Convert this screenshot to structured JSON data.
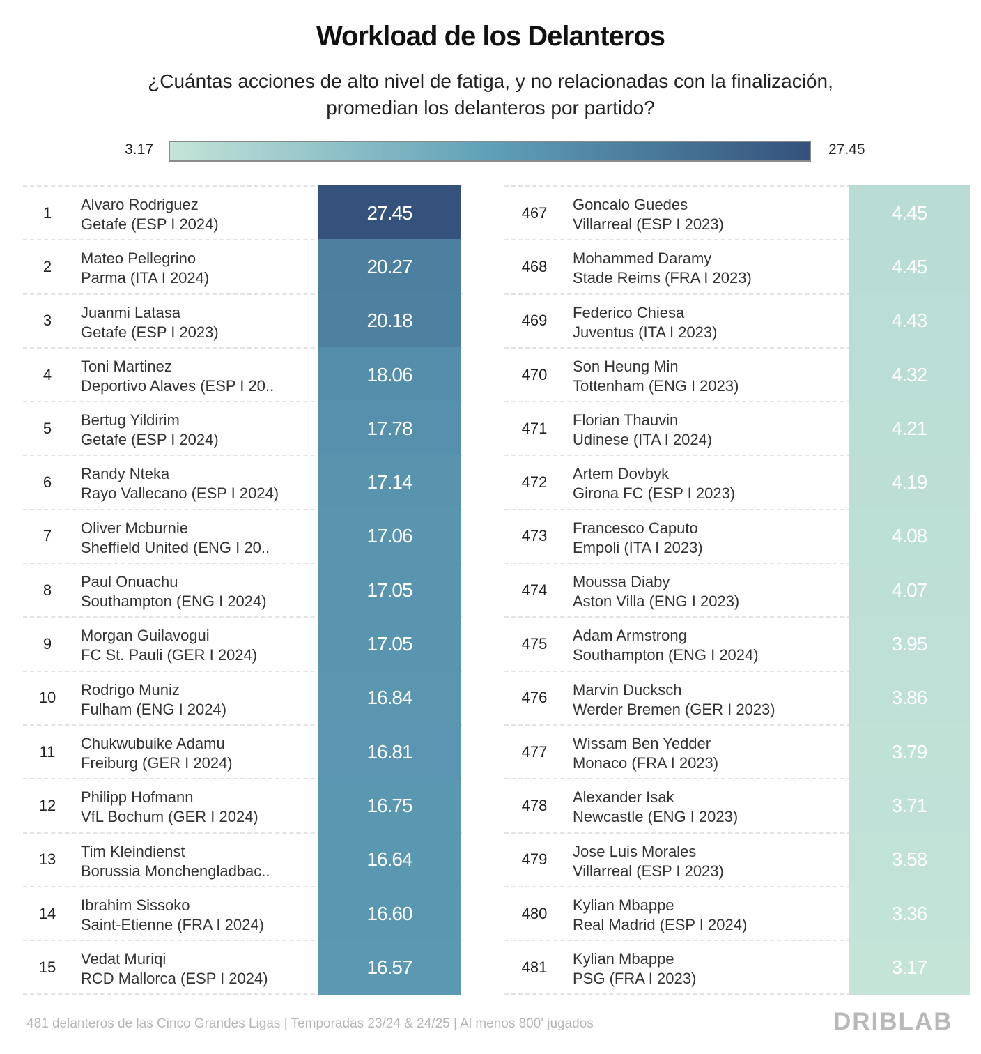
{
  "title": "Workload de los Delanteros",
  "subtitle_line1": "¿Cuántas acciones de alto nivel de fatiga, y no relacionadas con la finalización,",
  "subtitle_line2": "promedian los delanteros por partido?",
  "legend": {
    "min_label": "3.17",
    "max_label": "27.45",
    "min_color": "#c4e4d8",
    "mid_color": "#5fa0b8",
    "max_color": "#34527c"
  },
  "footer": "481 delanteros de las Cinco Grandes Ligas | Temporadas 23/24 & 24/25 | Al menos 800' jugados",
  "brand": "DRIBLAB",
  "chart_data": {
    "type": "table",
    "title": "Workload de los Delanteros",
    "color_scale": {
      "min": 3.17,
      "max": 27.45
    },
    "top": [
      {
        "rank": "1",
        "player": "Alvaro Rodriguez",
        "team": "Getafe (ESP I 2024)",
        "value": 27.45
      },
      {
        "rank": "2",
        "player": "Mateo Pellegrino",
        "team": "Parma (ITA I 2024)",
        "value": 20.27
      },
      {
        "rank": "3",
        "player": "Juanmi Latasa",
        "team": "Getafe (ESP I 2023)",
        "value": 20.18
      },
      {
        "rank": "4",
        "player": "Toni Martinez",
        "team": "Deportivo Alaves (ESP I 20..",
        "value": 18.06
      },
      {
        "rank": "5",
        "player": "Bertug Yildirim",
        "team": "Getafe (ESP I 2024)",
        "value": 17.78
      },
      {
        "rank": "6",
        "player": "Randy Nteka",
        "team": "Rayo Vallecano (ESP I 2024)",
        "value": 17.14
      },
      {
        "rank": "7",
        "player": "Oliver Mcburnie",
        "team": "Sheffield United (ENG I 20..",
        "value": 17.06
      },
      {
        "rank": "8",
        "player": "Paul Onuachu",
        "team": "Southampton (ENG I 2024)",
        "value": 17.05
      },
      {
        "rank": "9",
        "player": "Morgan Guilavogui",
        "team": "FC St. Pauli (GER I 2024)",
        "value": 17.05
      },
      {
        "rank": "10",
        "player": "Rodrigo Muniz",
        "team": "Fulham (ENG I 2024)",
        "value": 16.84
      },
      {
        "rank": "11",
        "player": "Chukwubuike Adamu",
        "team": "Freiburg (GER I 2024)",
        "value": 16.81
      },
      {
        "rank": "12",
        "player": "Philipp Hofmann",
        "team": "VfL Bochum (GER I 2024)",
        "value": 16.75
      },
      {
        "rank": "13",
        "player": "Tim Kleindienst",
        "team": "Borussia Monchengladbac..",
        "value": 16.64
      },
      {
        "rank": "14",
        "player": "Ibrahim Sissoko",
        "team": "Saint-Etienne (FRA I 2024)",
        "value": "16.60"
      },
      {
        "rank": "15",
        "player": "Vedat Muriqi",
        "team": "RCD Mallorca (ESP I 2024)",
        "value": 16.57
      }
    ],
    "bottom": [
      {
        "rank": "467",
        "player": "Goncalo Guedes",
        "team": "Villarreal (ESP I 2023)",
        "value": 4.45
      },
      {
        "rank": "468",
        "player": "Mohammed Daramy",
        "team": "Stade Reims (FRA I 2023)",
        "value": 4.45
      },
      {
        "rank": "469",
        "player": "Federico Chiesa",
        "team": "Juventus (ITA I 2023)",
        "value": 4.43
      },
      {
        "rank": "470",
        "player": "Son Heung Min",
        "team": "Tottenham (ENG I 2023)",
        "value": 4.32
      },
      {
        "rank": "471",
        "player": "Florian Thauvin",
        "team": "Udinese (ITA I 2024)",
        "value": 4.21
      },
      {
        "rank": "472",
        "player": "Artem Dovbyk",
        "team": "Girona FC (ESP I 2023)",
        "value": 4.19
      },
      {
        "rank": "473",
        "player": "Francesco Caputo",
        "team": "Empoli (ITA I 2023)",
        "value": 4.08
      },
      {
        "rank": "474",
        "player": "Moussa Diaby",
        "team": "Aston Villa (ENG I 2023)",
        "value": 4.07
      },
      {
        "rank": "475",
        "player": "Adam Armstrong",
        "team": "Southampton (ENG I 2024)",
        "value": 3.95
      },
      {
        "rank": "476",
        "player": "Marvin Ducksch",
        "team": "Werder Bremen (GER I 2023)",
        "value": 3.86
      },
      {
        "rank": "477",
        "player": "Wissam Ben Yedder",
        "team": "Monaco (FRA I 2023)",
        "value": 3.79
      },
      {
        "rank": "478",
        "player": "Alexander Isak",
        "team": "Newcastle (ENG I 2023)",
        "value": 3.71
      },
      {
        "rank": "479",
        "player": "Jose Luis Morales",
        "team": "Villarreal (ESP I 2023)",
        "value": 3.58
      },
      {
        "rank": "480",
        "player": "Kylian Mbappe",
        "team": "Real Madrid (ESP I 2024)",
        "value": 3.36
      },
      {
        "rank": "481",
        "player": "Kylian Mbappe",
        "team": "PSG (FRA I 2023)",
        "value": 3.17
      }
    ]
  }
}
